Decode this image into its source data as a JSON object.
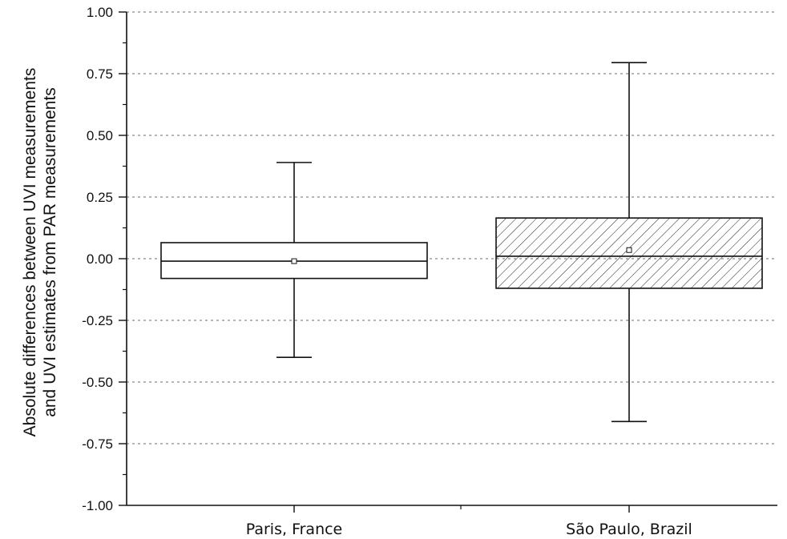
{
  "chart_data": {
    "type": "boxplot",
    "title": "",
    "ylabel": [
      "Absolute differences between UVI measurements",
      "and UVI estimates from PAR measurements"
    ],
    "xlabel": "",
    "ylim": [
      -1.0,
      1.0
    ],
    "yticks": [
      -1.0,
      -0.75,
      -0.5,
      -0.25,
      0.0,
      0.25,
      0.5,
      0.75,
      1.0
    ],
    "ytick_labels": [
      "-1.00",
      "-0.75",
      "-0.50",
      "-0.25",
      "0.00",
      "0.25",
      "0.50",
      "0.75",
      "1.00"
    ],
    "grid": "horizontal dotted",
    "categories": [
      "Paris, France",
      "São Paulo, Brazil"
    ],
    "boxes": [
      {
        "category": "Paris, France",
        "whisker_low": -0.4,
        "q1": -0.08,
        "median": -0.01,
        "mean": -0.01,
        "q3": 0.065,
        "whisker_high": 0.39,
        "fill": "none"
      },
      {
        "category": "São Paulo, Brazil",
        "whisker_low": -0.66,
        "q1": -0.12,
        "median": 0.01,
        "mean": 0.035,
        "q3": 0.165,
        "whisker_high": 0.795,
        "fill": "hatched"
      }
    ]
  }
}
